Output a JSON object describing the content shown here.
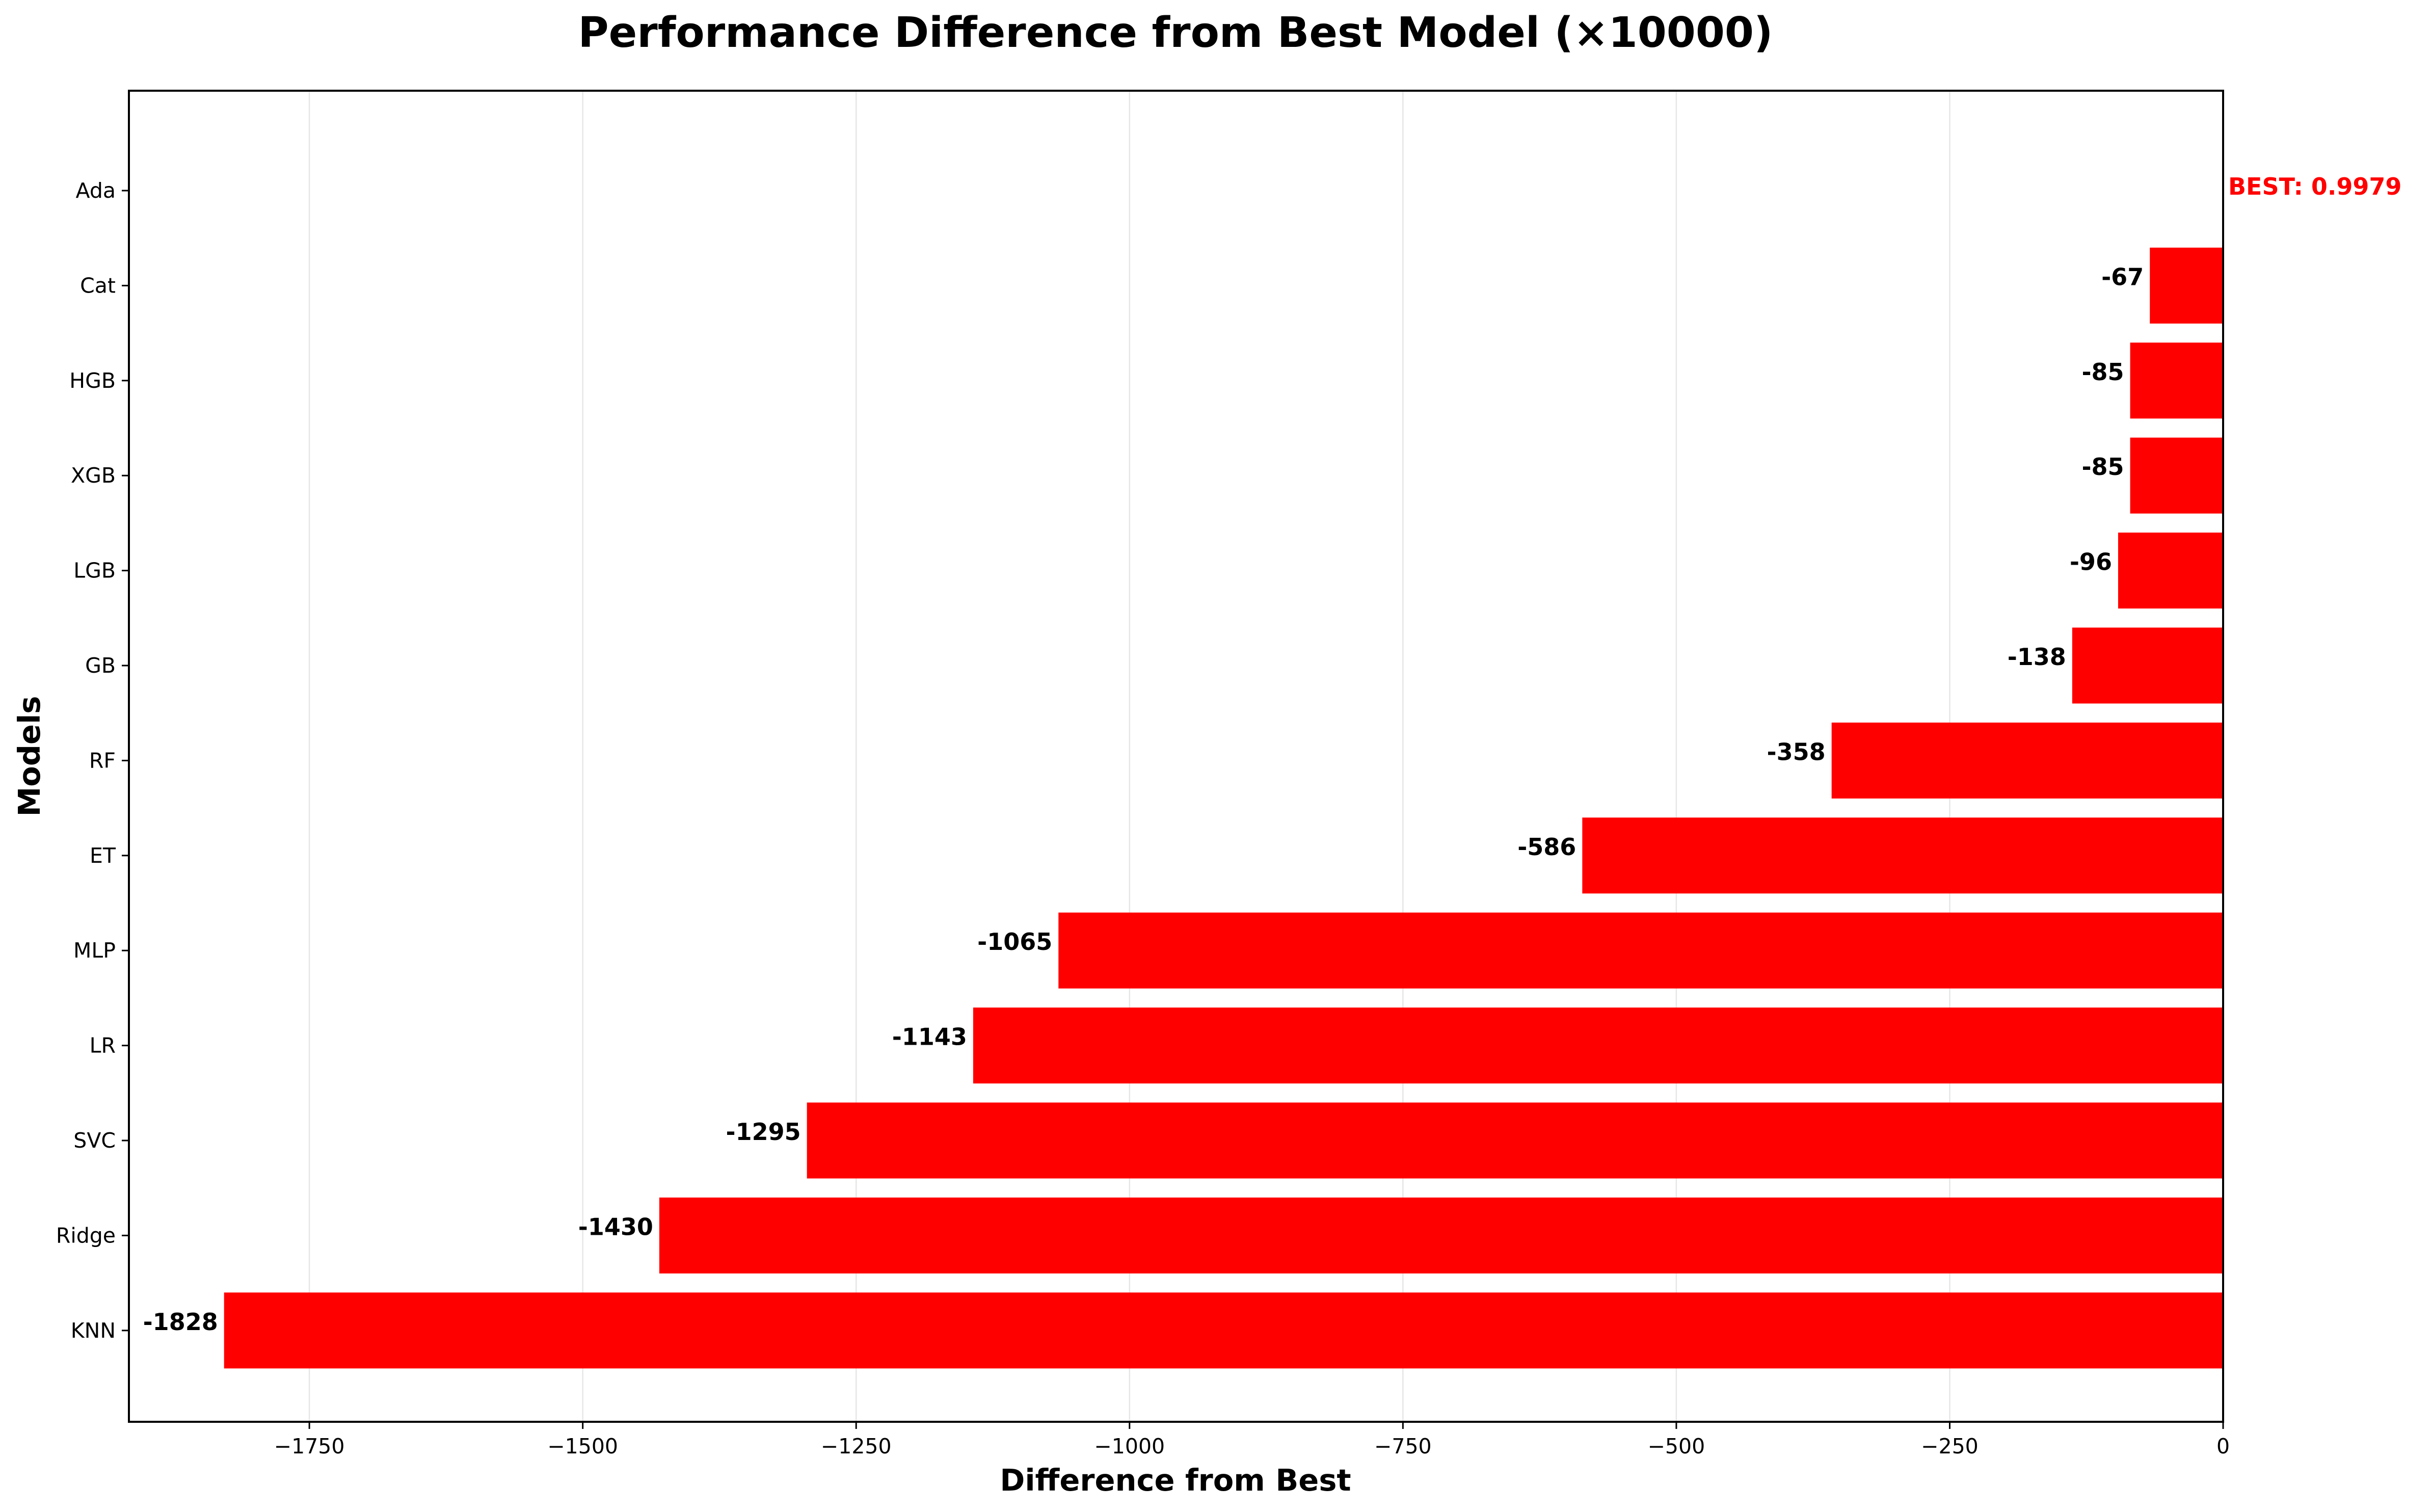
{
  "chart_data": {
    "type": "bar",
    "orientation": "horizontal",
    "title": "Performance Difference from Best Model (×10000)",
    "xlabel": "Difference from Best",
    "ylabel": "Models",
    "categories": [
      "Ada",
      "Cat",
      "HGB",
      "XGB",
      "LGB",
      "GB",
      "RF",
      "ET",
      "MLP",
      "LR",
      "SVC",
      "Ridge",
      "KNN"
    ],
    "values": [
      0,
      -67,
      -85,
      -85,
      -96,
      -138,
      -358,
      -586,
      -1065,
      -1143,
      -1295,
      -1430,
      -1828
    ],
    "value_labels": [
      "",
      "-67",
      "-85",
      "-85",
      "-96",
      "-138",
      "-358",
      "-586",
      "-1065",
      "-1143",
      "-1295",
      "-1430",
      "-1828"
    ],
    "best_annotation": "BEST: 0.9979",
    "xlim": [
      -1915,
      0
    ],
    "xticks": [
      -1750,
      -1500,
      -1250,
      -1000,
      -750,
      -500,
      -250,
      0
    ],
    "xtick_labels": [
      "−1750",
      "−1500",
      "−1250",
      "−1000",
      "−750",
      "−500",
      "−250",
      "0"
    ],
    "grid": "x",
    "reference_line": 0,
    "colors": {
      "bar": "#ff0000",
      "best_annotation": "#ff0000",
      "grid": "#e6e6e6",
      "reference_line": "#000000"
    }
  }
}
